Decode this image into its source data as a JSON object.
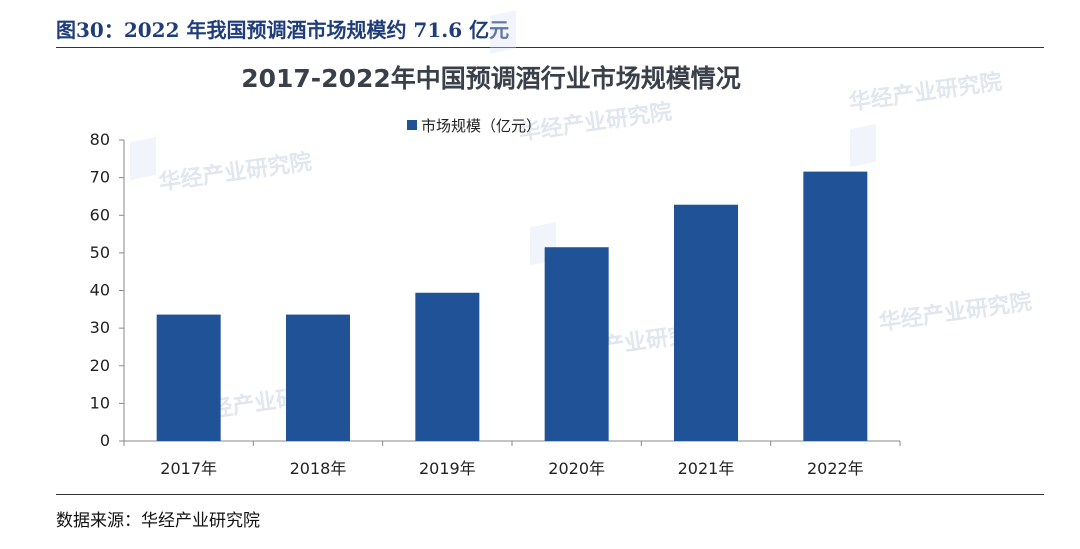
{
  "figure": {
    "caption": "图30：2022 年我国预调酒市场规模约 71.6 亿元",
    "source": "数据来源：华经产业研究院",
    "watermark": "华经产业研究院"
  },
  "chart_data": {
    "type": "bar",
    "title": "2017-2022年中国预调酒行业市场规模情况",
    "categories": [
      "2017年",
      "2018年",
      "2019年",
      "2020年",
      "2021年",
      "2022年"
    ],
    "series": [
      {
        "name": "市场规模（亿元）",
        "values": [
          33.6,
          33.6,
          39.4,
          51.5,
          62.8,
          71.6
        ],
        "color": "#1f5296"
      }
    ],
    "xlabel": "",
    "ylabel": "",
    "ylim": [
      0,
      80
    ],
    "yticks": [
      0,
      10,
      20,
      30,
      40,
      50,
      60,
      70,
      80
    ],
    "grid": false,
    "legend_position": "top-center"
  }
}
